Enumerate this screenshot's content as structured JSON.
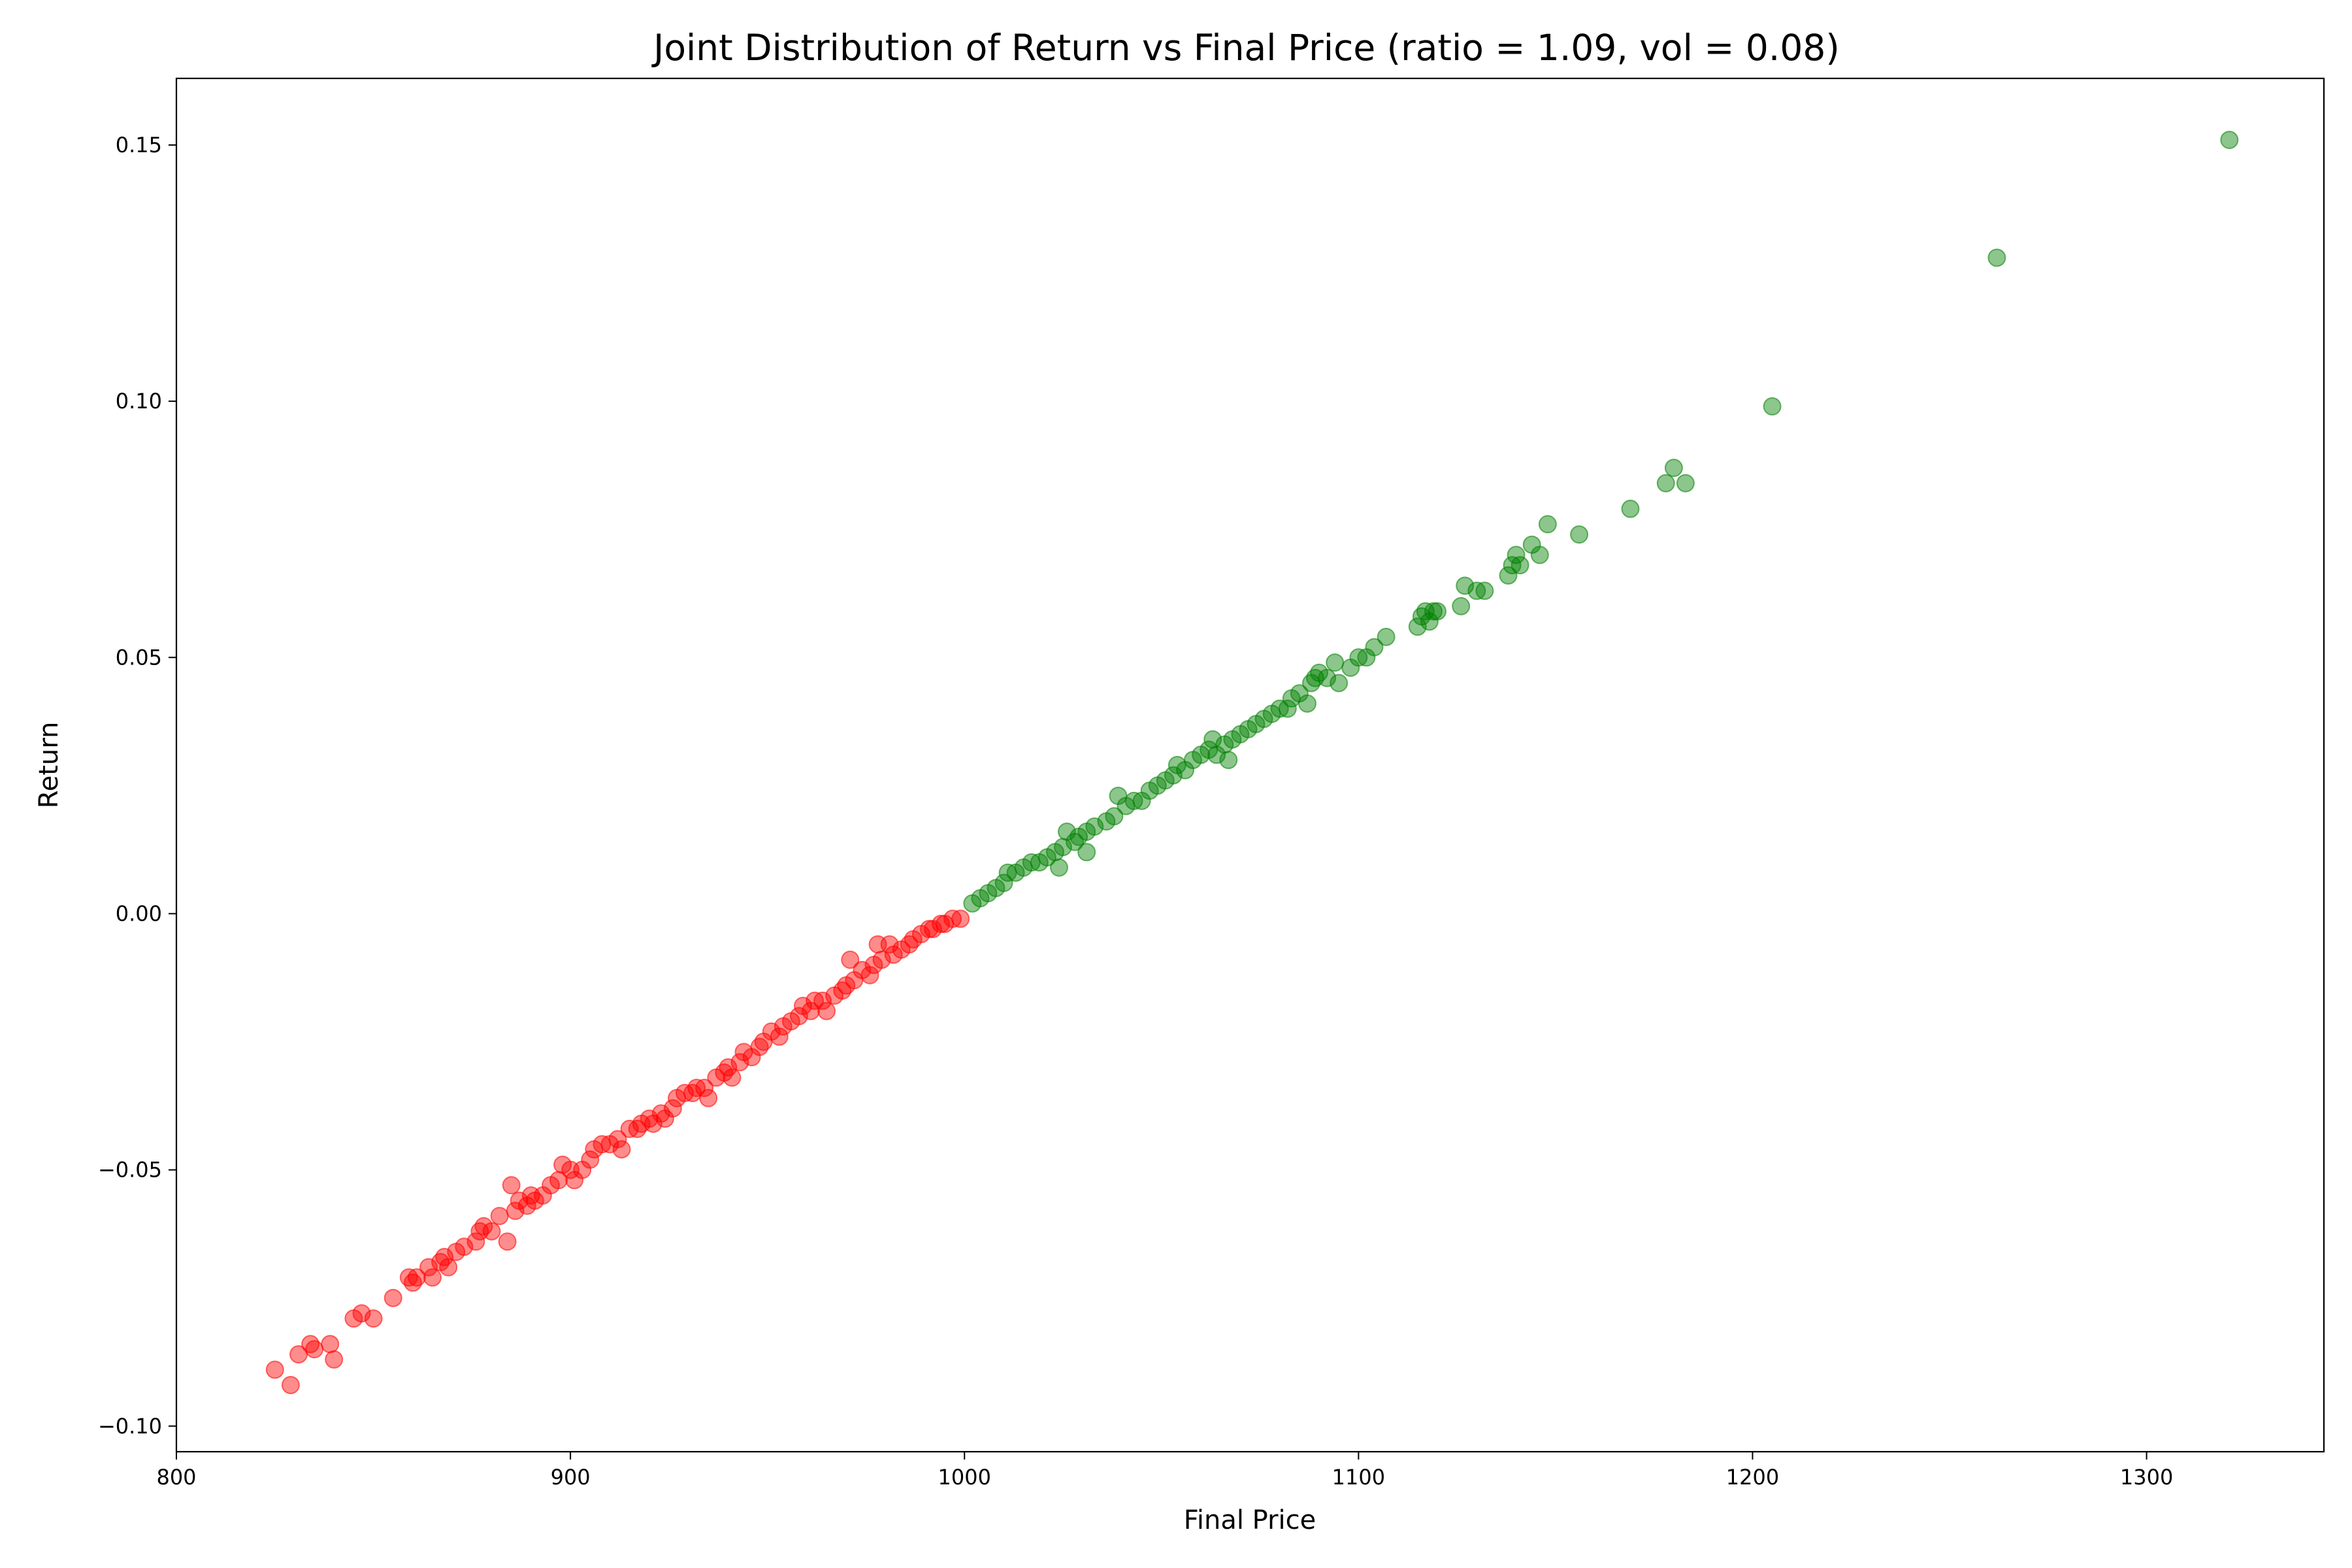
{
  "chart_data": {
    "type": "scatter",
    "title": "Joint Distribution of Return vs Final Price (ratio = 1.09, vol = 0.08)",
    "xlabel": "Final Price",
    "ylabel": "Return",
    "xlim": [
      800,
      1345
    ],
    "ylim": [
      -0.105,
      0.163
    ],
    "xticks": [
      800,
      900,
      1000,
      1100,
      1200,
      1300
    ],
    "yticks": [
      -0.1,
      -0.05,
      0.0,
      0.05,
      0.1,
      0.15
    ],
    "xtick_labels": [
      "800",
      "900",
      "1000",
      "1100",
      "1200",
      "1300"
    ],
    "ytick_labels": [
      "−0.10",
      "−0.05",
      "0.00",
      "0.05",
      "0.10",
      "0.15"
    ],
    "grid": false,
    "colors": {
      "negative_return": "#ff0000",
      "positive_return": "#008000"
    },
    "marker_alpha": 0.45,
    "series": [
      {
        "color": "#ff0000",
        "points": [
          [
            825,
            -0.089
          ],
          [
            829,
            -0.092
          ],
          [
            831,
            -0.086
          ],
          [
            834,
            -0.084
          ],
          [
            835,
            -0.085
          ],
          [
            839,
            -0.084
          ],
          [
            840,
            -0.087
          ],
          [
            845,
            -0.079
          ],
          [
            847,
            -0.078
          ],
          [
            850,
            -0.079
          ],
          [
            855,
            -0.075
          ],
          [
            859,
            -0.071
          ],
          [
            860,
            -0.072
          ],
          [
            861,
            -0.071
          ],
          [
            864,
            -0.069
          ],
          [
            865,
            -0.071
          ],
          [
            867,
            -0.068
          ],
          [
            868,
            -0.067
          ],
          [
            869,
            -0.069
          ],
          [
            871,
            -0.066
          ],
          [
            873,
            -0.065
          ],
          [
            876,
            -0.064
          ],
          [
            877,
            -0.062
          ],
          [
            878,
            -0.061
          ],
          [
            880,
            -0.062
          ],
          [
            882,
            -0.059
          ],
          [
            884,
            -0.064
          ],
          [
            885,
            -0.053
          ],
          [
            886,
            -0.058
          ],
          [
            887,
            -0.056
          ],
          [
            889,
            -0.057
          ],
          [
            890,
            -0.055
          ],
          [
            891,
            -0.056
          ],
          [
            893,
            -0.055
          ],
          [
            895,
            -0.053
          ],
          [
            897,
            -0.052
          ],
          [
            898,
            -0.049
          ],
          [
            900,
            -0.05
          ],
          [
            901,
            -0.052
          ],
          [
            903,
            -0.05
          ],
          [
            905,
            -0.048
          ],
          [
            906,
            -0.046
          ],
          [
            908,
            -0.045
          ],
          [
            910,
            -0.045
          ],
          [
            912,
            -0.044
          ],
          [
            913,
            -0.046
          ],
          [
            915,
            -0.042
          ],
          [
            917,
            -0.042
          ],
          [
            918,
            -0.041
          ],
          [
            920,
            -0.04
          ],
          [
            921,
            -0.041
          ],
          [
            923,
            -0.039
          ],
          [
            924,
            -0.04
          ],
          [
            926,
            -0.038
          ],
          [
            927,
            -0.036
          ],
          [
            929,
            -0.035
          ],
          [
            931,
            -0.035
          ],
          [
            932,
            -0.034
          ],
          [
            934,
            -0.034
          ],
          [
            935,
            -0.036
          ],
          [
            937,
            -0.032
          ],
          [
            939,
            -0.031
          ],
          [
            940,
            -0.03
          ],
          [
            941,
            -0.032
          ],
          [
            943,
            -0.029
          ],
          [
            944,
            -0.027
          ],
          [
            946,
            -0.028
          ],
          [
            948,
            -0.026
          ],
          [
            949,
            -0.025
          ],
          [
            951,
            -0.023
          ],
          [
            953,
            -0.024
          ],
          [
            954,
            -0.022
          ],
          [
            956,
            -0.021
          ],
          [
            958,
            -0.02
          ],
          [
            959,
            -0.018
          ],
          [
            961,
            -0.019
          ],
          [
            962,
            -0.017
          ],
          [
            964,
            -0.017
          ],
          [
            965,
            -0.019
          ],
          [
            967,
            -0.016
          ],
          [
            969,
            -0.015
          ],
          [
            970,
            -0.014
          ],
          [
            971,
            -0.009
          ],
          [
            972,
            -0.013
          ],
          [
            974,
            -0.011
          ],
          [
            976,
            -0.012
          ],
          [
            977,
            -0.01
          ],
          [
            978,
            -0.006
          ],
          [
            979,
            -0.009
          ],
          [
            981,
            -0.006
          ],
          [
            982,
            -0.008
          ],
          [
            984,
            -0.007
          ],
          [
            986,
            -0.006
          ],
          [
            987,
            -0.005
          ],
          [
            989,
            -0.004
          ],
          [
            991,
            -0.003
          ],
          [
            992,
            -0.003
          ],
          [
            994,
            -0.002
          ],
          [
            995,
            -0.002
          ],
          [
            997,
            -0.001
          ],
          [
            999,
            -0.001
          ]
        ]
      },
      {
        "color": "#008000",
        "points": [
          [
            1002,
            0.002
          ],
          [
            1004,
            0.003
          ],
          [
            1006,
            0.004
          ],
          [
            1008,
            0.005
          ],
          [
            1010,
            0.006
          ],
          [
            1011,
            0.008
          ],
          [
            1013,
            0.008
          ],
          [
            1015,
            0.009
          ],
          [
            1017,
            0.01
          ],
          [
            1019,
            0.01
          ],
          [
            1021,
            0.011
          ],
          [
            1023,
            0.012
          ],
          [
            1024,
            0.009
          ],
          [
            1025,
            0.013
          ],
          [
            1026,
            0.016
          ],
          [
            1028,
            0.014
          ],
          [
            1029,
            0.015
          ],
          [
            1031,
            0.012
          ],
          [
            1031,
            0.016
          ],
          [
            1033,
            0.017
          ],
          [
            1036,
            0.018
          ],
          [
            1038,
            0.019
          ],
          [
            1039,
            0.023
          ],
          [
            1041,
            0.021
          ],
          [
            1043,
            0.022
          ],
          [
            1045,
            0.022
          ],
          [
            1047,
            0.024
          ],
          [
            1049,
            0.025
          ],
          [
            1051,
            0.026
          ],
          [
            1053,
            0.027
          ],
          [
            1054,
            0.029
          ],
          [
            1056,
            0.028
          ],
          [
            1058,
            0.03
          ],
          [
            1060,
            0.031
          ],
          [
            1062,
            0.032
          ],
          [
            1063,
            0.034
          ],
          [
            1064,
            0.031
          ],
          [
            1066,
            0.033
          ],
          [
            1067,
            0.03
          ],
          [
            1068,
            0.034
          ],
          [
            1070,
            0.035
          ],
          [
            1072,
            0.036
          ],
          [
            1074,
            0.037
          ],
          [
            1076,
            0.038
          ],
          [
            1078,
            0.039
          ],
          [
            1080,
            0.04
          ],
          [
            1082,
            0.04
          ],
          [
            1083,
            0.042
          ],
          [
            1085,
            0.043
          ],
          [
            1087,
            0.041
          ],
          [
            1088,
            0.045
          ],
          [
            1089,
            0.046
          ],
          [
            1090,
            0.047
          ],
          [
            1092,
            0.046
          ],
          [
            1094,
            0.049
          ],
          [
            1095,
            0.045
          ],
          [
            1098,
            0.048
          ],
          [
            1100,
            0.05
          ],
          [
            1102,
            0.05
          ],
          [
            1104,
            0.052
          ],
          [
            1107,
            0.054
          ],
          [
            1115,
            0.056
          ],
          [
            1116,
            0.058
          ],
          [
            1117,
            0.059
          ],
          [
            1118,
            0.057
          ],
          [
            1119,
            0.059
          ],
          [
            1120,
            0.059
          ],
          [
            1126,
            0.06
          ],
          [
            1127,
            0.064
          ],
          [
            1130,
            0.063
          ],
          [
            1132,
            0.063
          ],
          [
            1138,
            0.066
          ],
          [
            1139,
            0.068
          ],
          [
            1140,
            0.07
          ],
          [
            1141,
            0.068
          ],
          [
            1144,
            0.072
          ],
          [
            1146,
            0.07
          ],
          [
            1148,
            0.076
          ],
          [
            1156,
            0.074
          ],
          [
            1169,
            0.079
          ],
          [
            1178,
            0.084
          ],
          [
            1180,
            0.087
          ],
          [
            1183,
            0.084
          ],
          [
            1205,
            0.099
          ],
          [
            1262,
            0.128
          ],
          [
            1321,
            0.151
          ]
        ]
      }
    ]
  }
}
